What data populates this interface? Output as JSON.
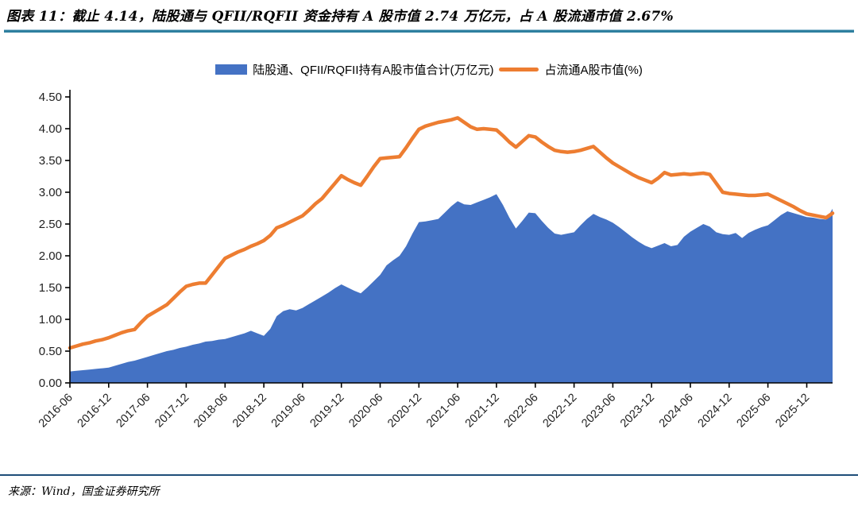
{
  "report": {
    "title": "图表 11：截止 4.14，陆股通与 QFII/RQFII 资金持有 A 股市值 2.74 万亿元，占 A 股流通市值 2.67%",
    "source": "来源：Wind，国金证券研究所"
  },
  "colors": {
    "area_series": "#4472C4",
    "line_series": "#ED7D31",
    "title_rule": "#2E7F9F",
    "footer_rule": "#1F4E79",
    "axis": "#000000"
  },
  "chart_data": {
    "type": "area",
    "title": "图表 11：截止 4.14，陆股通与 QFII/RQFII 资金持有 A 股市值 2.74 万亿元，占 A 股流通市值 2.67%",
    "xlabel": "",
    "ylabel": "",
    "ylim": [
      0,
      4.5
    ],
    "grid": false,
    "legend_position": "top",
    "y_ticks": [
      "0.00",
      "0.50",
      "1.00",
      "1.50",
      "2.00",
      "2.50",
      "3.00",
      "3.50",
      "4.00",
      "4.50"
    ],
    "x_tick_labels": [
      "2016-06",
      "2016-12",
      "2017-06",
      "2017-12",
      "2018-06",
      "2018-12",
      "2019-06",
      "2019-12",
      "2020-06",
      "2020-12",
      "2021-06",
      "2021-12",
      "2022-06",
      "2022-12",
      "2023-06",
      "2023-12",
      "2024-06",
      "2024-12",
      "2025-06",
      "2025-12"
    ],
    "x": [
      "2016-06",
      "2016-07",
      "2016-08",
      "2016-09",
      "2016-10",
      "2016-11",
      "2016-12",
      "2017-01",
      "2017-02",
      "2017-03",
      "2017-04",
      "2017-05",
      "2017-06",
      "2017-07",
      "2017-08",
      "2017-09",
      "2017-10",
      "2017-11",
      "2017-12",
      "2018-01",
      "2018-02",
      "2018-03",
      "2018-04",
      "2018-05",
      "2018-06",
      "2018-07",
      "2018-08",
      "2018-09",
      "2018-10",
      "2018-11",
      "2018-12",
      "2019-01",
      "2019-02",
      "2019-03",
      "2019-04",
      "2019-05",
      "2019-06",
      "2019-07",
      "2019-08",
      "2019-09",
      "2019-10",
      "2019-11",
      "2019-12",
      "2020-01",
      "2020-02",
      "2020-03",
      "2020-04",
      "2020-05",
      "2020-06",
      "2020-07",
      "2020-08",
      "2020-09",
      "2020-10",
      "2020-11",
      "2020-12",
      "2021-01",
      "2021-02",
      "2021-03",
      "2021-04",
      "2021-05",
      "2021-06",
      "2021-07",
      "2021-08",
      "2021-09",
      "2021-10",
      "2021-11",
      "2021-12",
      "2022-01",
      "2022-02",
      "2022-03",
      "2022-04",
      "2022-05",
      "2022-06",
      "2022-07",
      "2022-08",
      "2022-09",
      "2022-10",
      "2022-11",
      "2022-12",
      "2023-01",
      "2023-02",
      "2023-03",
      "2023-04",
      "2023-05",
      "2023-06",
      "2023-07",
      "2023-08",
      "2023-09",
      "2023-10",
      "2023-11",
      "2023-12",
      "2024-01",
      "2024-02",
      "2024-03",
      "2024-04",
      "2024-05",
      "2024-06",
      "2024-07",
      "2024-08",
      "2024-09",
      "2024-10",
      "2024-11",
      "2024-12",
      "2025-01",
      "2025-02",
      "2025-03",
      "2025-04",
      "2025-05",
      "2025-06",
      "2025-07",
      "2025-08",
      "2025-09",
      "2025-10",
      "2025-11",
      "2025-12",
      "2026-01",
      "2026-02",
      "2026-03",
      "2026-04"
    ],
    "series": [
      {
        "name": "陆股通、QFII/RQFII持有A股市值合计(万亿元)",
        "type": "area",
        "color": "#4472C4",
        "values": [
          0.18,
          0.19,
          0.2,
          0.21,
          0.22,
          0.23,
          0.24,
          0.27,
          0.3,
          0.33,
          0.35,
          0.38,
          0.41,
          0.44,
          0.47,
          0.5,
          0.52,
          0.55,
          0.57,
          0.6,
          0.62,
          0.65,
          0.66,
          0.68,
          0.69,
          0.72,
          0.75,
          0.78,
          0.82,
          0.78,
          0.74,
          0.85,
          1.05,
          1.13,
          1.16,
          1.14,
          1.18,
          1.24,
          1.3,
          1.36,
          1.42,
          1.49,
          1.55,
          1.5,
          1.45,
          1.41,
          1.5,
          1.6,
          1.7,
          1.85,
          1.93,
          2.0,
          2.15,
          2.35,
          2.53,
          2.54,
          2.56,
          2.58,
          2.68,
          2.78,
          2.86,
          2.81,
          2.8,
          2.84,
          2.88,
          2.92,
          2.97,
          2.8,
          2.6,
          2.43,
          2.55,
          2.68,
          2.67,
          2.55,
          2.44,
          2.35,
          2.33,
          2.35,
          2.37,
          2.48,
          2.58,
          2.66,
          2.61,
          2.57,
          2.52,
          2.45,
          2.37,
          2.29,
          2.22,
          2.16,
          2.12,
          2.16,
          2.2,
          2.15,
          2.17,
          2.3,
          2.38,
          2.44,
          2.5,
          2.46,
          2.37,
          2.34,
          2.33,
          2.36,
          2.28,
          2.36,
          2.41,
          2.45,
          2.48,
          2.56,
          2.64,
          2.7,
          2.67,
          2.64,
          2.61,
          2.6,
          2.58,
          2.57,
          2.74
        ]
      },
      {
        "name": "占流通A股市值(%)",
        "type": "line",
        "color": "#ED7D31",
        "values": [
          0.55,
          0.58,
          0.61,
          0.63,
          0.66,
          0.68,
          0.71,
          0.75,
          0.79,
          0.82,
          0.84,
          0.95,
          1.05,
          1.11,
          1.17,
          1.23,
          1.33,
          1.43,
          1.52,
          1.55,
          1.57,
          1.57,
          1.7,
          1.83,
          1.96,
          2.01,
          2.06,
          2.1,
          2.15,
          2.19,
          2.24,
          2.32,
          2.44,
          2.48,
          2.53,
          2.58,
          2.63,
          2.72,
          2.82,
          2.9,
          3.02,
          3.14,
          3.26,
          3.2,
          3.15,
          3.11,
          3.25,
          3.4,
          3.53,
          3.54,
          3.55,
          3.56,
          3.7,
          3.85,
          3.99,
          4.04,
          4.07,
          4.1,
          4.12,
          4.14,
          4.17,
          4.1,
          4.03,
          3.99,
          4.0,
          3.99,
          3.98,
          3.89,
          3.79,
          3.71,
          3.8,
          3.89,
          3.87,
          3.79,
          3.72,
          3.66,
          3.64,
          3.63,
          3.64,
          3.66,
          3.69,
          3.72,
          3.63,
          3.54,
          3.46,
          3.4,
          3.34,
          3.28,
          3.23,
          3.19,
          3.15,
          3.22,
          3.31,
          3.27,
          3.28,
          3.29,
          3.28,
          3.29,
          3.3,
          3.28,
          3.14,
          3.0,
          2.98,
          2.97,
          2.96,
          2.95,
          2.95,
          2.96,
          2.97,
          2.92,
          2.87,
          2.82,
          2.77,
          2.71,
          2.66,
          2.64,
          2.62,
          2.6,
          2.67
        ]
      }
    ]
  }
}
